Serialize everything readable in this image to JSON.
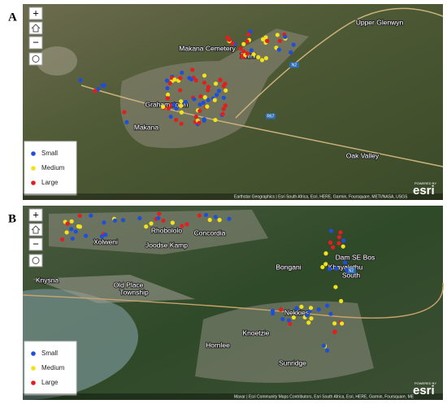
{
  "panels": [
    {
      "label": "A",
      "zoom_in": "+",
      "zoom_out": "−",
      "places": [
        "Upper Glenwyn",
        "Makana Cemetery",
        "Rhini",
        "Grahamstown",
        "Makana",
        "Oak Valley",
        "N2",
        "R67"
      ],
      "legend": [
        {
          "label": "Small",
          "color": "#1f4fd8"
        },
        {
          "label": "Medium",
          "color": "#f2e21b"
        },
        {
          "label": "Large",
          "color": "#e0201e"
        }
      ],
      "attribution": "Earthstar Geographics | Esri South Africa, Esri, HERE, Garmin, Foursquare, METI/NASA, USGS"
    },
    {
      "label": "B",
      "zoom_in": "+",
      "zoom_out": "−",
      "places": [
        "Rhobololo",
        "Concordia",
        "Xolweni",
        "Joodse Kamp",
        "Dam SE Bos",
        "Bongani",
        "Khayalethu",
        "South",
        "Knysna",
        "Old Place",
        "Township",
        "Nekkies",
        "Knoetzie",
        "Hornlee",
        "Sunridge",
        "N2"
      ],
      "legend": [
        {
          "label": "Small",
          "color": "#1f4fd8"
        },
        {
          "label": "Medium",
          "color": "#f2e21b"
        },
        {
          "label": "Large",
          "color": "#e0201e"
        }
      ],
      "attribution": "Maxar | Esri Community Maps Contributors, Esri South Africa, Esri, HERE, Garmin, Foursquare, ME"
    }
  ],
  "powered_by": "POWERED BY",
  "brand": "esri"
}
